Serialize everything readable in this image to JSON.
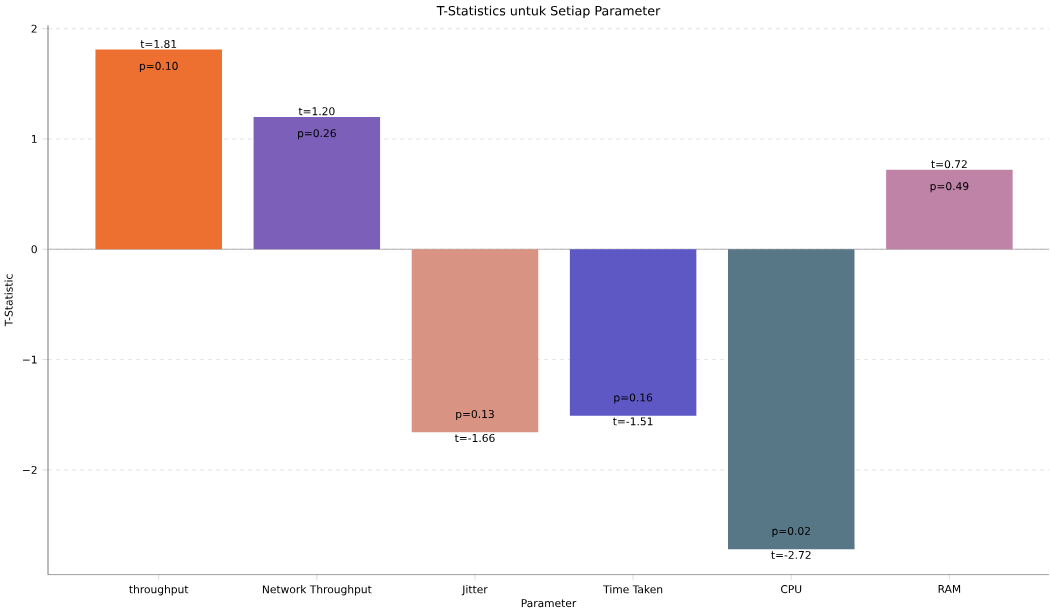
{
  "chart_data": {
    "type": "bar",
    "title": "T-Statistics untuk Setiap Parameter",
    "xlabel": "Parameter",
    "ylabel": "T-Statistic",
    "categories": [
      "throughput",
      "Network Throughput",
      "Jitter",
      "Time Taken",
      "CPU",
      "RAM"
    ],
    "values": [
      1.81,
      1.2,
      -1.66,
      -1.51,
      -2.72,
      0.72
    ],
    "colors": [
      "#ed7030",
      "#7b5fb8",
      "#d99382",
      "#5e58c4",
      "#587786",
      "#c083a8"
    ],
    "value_labels": [
      "t=1.81",
      "t=1.20",
      "t=-1.66",
      "t=-1.51",
      "t=-2.72",
      "t=0.72"
    ],
    "annotations": [
      {
        "text": "p=0.10",
        "x": "throughput",
        "y": 1.81
      },
      {
        "text": "p=0.26",
        "x": "Network Throughput",
        "y": 1.2
      },
      {
        "text": "p=0.13",
        "x": "Jitter",
        "y": -1.66
      },
      {
        "text": "p=0.16",
        "x": "Time Taken",
        "y": -1.51
      },
      {
        "text": "p=0.02",
        "x": "CPU",
        "y": -2.72
      },
      {
        "text": "p=0.49",
        "x": "RAM",
        "y": 0.72
      }
    ],
    "ylim": [
      -2.95,
      2.03
    ],
    "yticks": [
      {
        "value": -2,
        "label": "−2"
      },
      {
        "value": -1,
        "label": "−1"
      },
      0,
      1,
      2
    ],
    "ref_lines": [
      {
        "axis": "y",
        "value": 0,
        "color": "#b0b0b0"
      }
    ],
    "grid": "y"
  }
}
